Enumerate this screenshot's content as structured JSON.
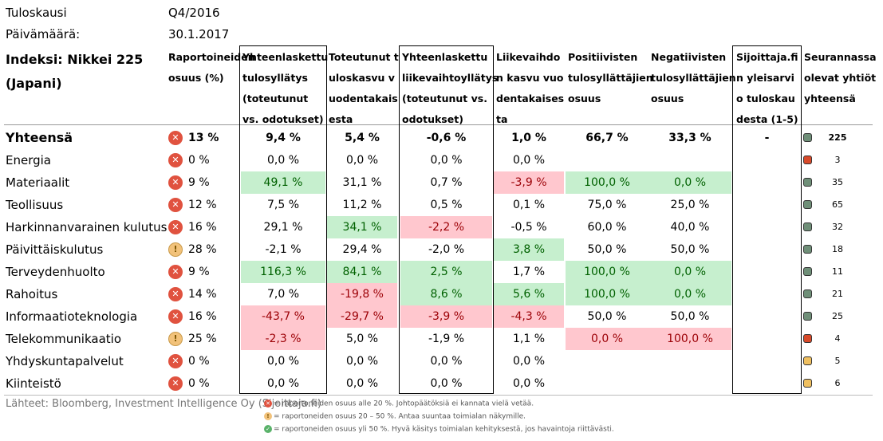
{
  "meta": {
    "period_label": "Tuloskausi",
    "period_value": "Q4/2016",
    "date_label": "Päivämäärä:",
    "date_value": "30.1.2017"
  },
  "index_title": "Indeksi: Nikkei 225 (Japani)",
  "headers": {
    "reported": "Raportoineiden osuus (%)",
    "eps_surprise": "Yhteenlaskettu tulosyllätys (toteutunut vs. odotukset)",
    "eps_growth": "Toteutunut tuloskasvu vuodentakaisesta",
    "rev_surprise": "Yhteenlaskettu liikevaihtoyllätys (toteutunut vs. odotukset)",
    "rev_growth": "Liikevaihdon kasvu vuodentakaisesta",
    "pos_share": "Positiivisten tulosyllättäjien osuus",
    "neg_share": "Negatiivisten tulosyllättäjien osuus",
    "overall": "Sijoittaja.fin yleisarvio tuloskaudesta (1-5)",
    "followed": "Seurannassa olevat yhtiöt yhteensä"
  },
  "rows": [
    {
      "name": "Yhteensä",
      "status": "red",
      "reported": "13 %",
      "eps_surprise": "9,4 %",
      "eps_growth": "5,4 %",
      "rev_surprise": "-0,6 %",
      "rev_growth": "1,0 %",
      "pos": "66,7 %",
      "neg": "33,3 %",
      "overall": "-",
      "dot": "green",
      "count": "225"
    },
    {
      "name": "Energia",
      "status": "red",
      "reported": "0 %",
      "eps_surprise": "0,0 %",
      "eps_growth": "0,0 %",
      "rev_surprise": "0,0 %",
      "rev_growth": "0,0 %",
      "pos": "",
      "neg": "",
      "overall": "",
      "dot": "red",
      "count": "3"
    },
    {
      "name": "Materiaalit",
      "status": "red",
      "reported": "9 %",
      "eps_surprise": "49,1 %",
      "eps_growth": "31,1 %",
      "rev_surprise": "0,7 %",
      "rev_growth": "-3,9 %",
      "pos": "100,0 %",
      "neg": "0,0 %",
      "overall": "",
      "dot": "green",
      "count": "35"
    },
    {
      "name": "Teollisuus",
      "status": "red",
      "reported": "12 %",
      "eps_surprise": "7,5 %",
      "eps_growth": "11,2 %",
      "rev_surprise": "0,5 %",
      "rev_growth": "0,1 %",
      "pos": "75,0 %",
      "neg": "25,0 %",
      "overall": "",
      "dot": "green",
      "count": "65"
    },
    {
      "name": "Harkinnanvarainen kulutus",
      "status": "red",
      "reported": "16 %",
      "eps_surprise": "29,1 %",
      "eps_growth": "34,1 %",
      "rev_surprise": "-2,2 %",
      "rev_growth": "-0,5 %",
      "pos": "60,0 %",
      "neg": "40,0 %",
      "overall": "",
      "dot": "green",
      "count": "32"
    },
    {
      "name": "Päivittäiskulutus",
      "status": "yellow",
      "reported": "28 %",
      "eps_surprise": "-2,1 %",
      "eps_growth": "29,4 %",
      "rev_surprise": "-2,0 %",
      "rev_growth": "3,8 %",
      "pos": "50,0 %",
      "neg": "50,0 %",
      "overall": "",
      "dot": "green",
      "count": "18"
    },
    {
      "name": "Terveydenhuolto",
      "status": "red",
      "reported": "9 %",
      "eps_surprise": "116,3 %",
      "eps_growth": "84,1 %",
      "rev_surprise": "2,5 %",
      "rev_growth": "1,7 %",
      "pos": "100,0 %",
      "neg": "0,0 %",
      "overall": "",
      "dot": "green",
      "count": "11"
    },
    {
      "name": "Rahoitus",
      "status": "red",
      "reported": "14 %",
      "eps_surprise": "7,0 %",
      "eps_growth": "-19,8 %",
      "rev_surprise": "8,6 %",
      "rev_growth": "5,6 %",
      "pos": "100,0 %",
      "neg": "0,0 %",
      "overall": "",
      "dot": "green",
      "count": "21"
    },
    {
      "name": "Informaatioteknologia",
      "status": "red",
      "reported": "16 %",
      "eps_surprise": "-43,7 %",
      "eps_growth": "-29,7 %",
      "rev_surprise": "-3,9 %",
      "rev_growth": "-4,3 %",
      "pos": "50,0 %",
      "neg": "50,0 %",
      "overall": "",
      "dot": "green",
      "count": "25"
    },
    {
      "name": "Telekommunikaatio",
      "status": "yellow",
      "reported": "25 %",
      "eps_surprise": "-2,3 %",
      "eps_growth": "5,0 %",
      "rev_surprise": "-1,9 %",
      "rev_growth": "1,1 %",
      "pos": "0,0 %",
      "neg": "100,0 %",
      "overall": "",
      "dot": "red",
      "count": "4"
    },
    {
      "name": "Yhdyskuntapalvelut",
      "status": "red",
      "reported": "0 %",
      "eps_surprise": "0,0 %",
      "eps_growth": "0,0 %",
      "rev_surprise": "0,0 %",
      "rev_growth": "0,0 %",
      "pos": "",
      "neg": "",
      "overall": "",
      "dot": "yellow",
      "count": "5"
    },
    {
      "name": "Kiinteistö",
      "status": "red",
      "reported": "0 %",
      "eps_surprise": "0,0 %",
      "eps_growth": "0,0 %",
      "rev_surprise": "0,0 %",
      "rev_growth": "0,0 %",
      "pos": "",
      "neg": "",
      "overall": "",
      "dot": "yellow",
      "count": "6"
    }
  ],
  "highlights": {
    "green": [
      "Materiaalit.eps_surprise",
      "Materiaalit.pos",
      "Materiaalit.neg",
      "Harkinnanvarainen kulutus.eps_growth",
      "Päivittäiskulutus.rev_growth",
      "Terveydenhuolto.eps_surprise",
      "Terveydenhuolto.eps_growth",
      "Terveydenhuolto.rev_surprise",
      "Terveydenhuolto.pos",
      "Terveydenhuolto.neg",
      "Rahoitus.rev_surprise",
      "Rahoitus.rev_growth",
      "Rahoitus.pos",
      "Rahoitus.neg"
    ],
    "red": [
      "Materiaalit.rev_growth",
      "Harkinnanvarainen kulutus.rev_surprise",
      "Rahoitus.eps_growth",
      "Informaatioteknologia.eps_surprise",
      "Informaatioteknologia.eps_growth",
      "Informaatioteknologia.rev_surprise",
      "Informaatioteknologia.rev_growth",
      "Telekommunikaatio.eps_surprise",
      "Telekommunikaatio.pos",
      "Telekommunikaatio.neg"
    ]
  },
  "footer": {
    "source": "Lähteet: Bloomberg, Investment Intelligence Oy (Sijoittaja.fi)",
    "legend_red": "= raportoneiden osuus alle 20 %. Johtopäätöksiä ei kannata vielä vetää.",
    "legend_yellow": "= raportoneiden osuus 20 – 50 %. Antaa suuntaa toimialan näkymille.",
    "legend_green": "= raportoneiden osuus yli 50 %. Hyvä käsitys toimialan kehityksestä, jos havaintoja riittävästi."
  },
  "colors": {
    "green_fill": "#c6efce",
    "green_text": "#006100",
    "red_fill": "#ffc7ce",
    "red_text": "#9c0006",
    "status_red": "#e0523f",
    "status_yellow": "#f2c27a"
  }
}
